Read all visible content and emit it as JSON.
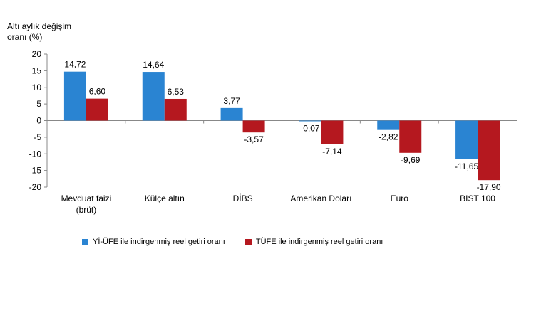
{
  "chart_data": {
    "type": "bar",
    "ylabel": "Altı aylık değişim oranı (%)",
    "ylabel_lines": [
      "Altı aylık değişim",
      "oranı (%)"
    ],
    "ylim": [
      -20,
      20
    ],
    "yticks": [
      20,
      15,
      10,
      5,
      0,
      -5,
      -10,
      -15,
      -20
    ],
    "categories": [
      "Mevduat faizi (brüt)",
      "Külçe altın",
      "DİBS",
      "Amerikan Doları",
      "Euro",
      "BIST 100"
    ],
    "category_lines": [
      [
        "Mevduat faizi",
        "(brüt)"
      ],
      [
        "Külçe altın"
      ],
      [
        "DİBS"
      ],
      [
        "Amerikan Doları"
      ],
      [
        "Euro"
      ],
      [
        "BIST 100"
      ]
    ],
    "series": [
      {
        "name": "Yİ-ÜFE ile indirgenmiş reel getiri oranı",
        "color": "#2a84d2",
        "values": [
          14.72,
          14.64,
          3.77,
          -0.07,
          -2.82,
          -11.65
        ],
        "labels": [
          "14,72",
          "14,64",
          "3,77",
          "-0,07",
          "-2,82",
          "-11,65"
        ]
      },
      {
        "name": "TÜFE ile indirgenmiş reel getiri oranı",
        "color": "#b5181f",
        "values": [
          6.6,
          6.53,
          -3.57,
          -7.14,
          -9.69,
          -17.9
        ],
        "labels": [
          "6,60",
          "6,53",
          "-3,57",
          "-7,14",
          "-9,69",
          "-17,90"
        ]
      }
    ],
    "legend_position": "bottom",
    "grid": false
  }
}
